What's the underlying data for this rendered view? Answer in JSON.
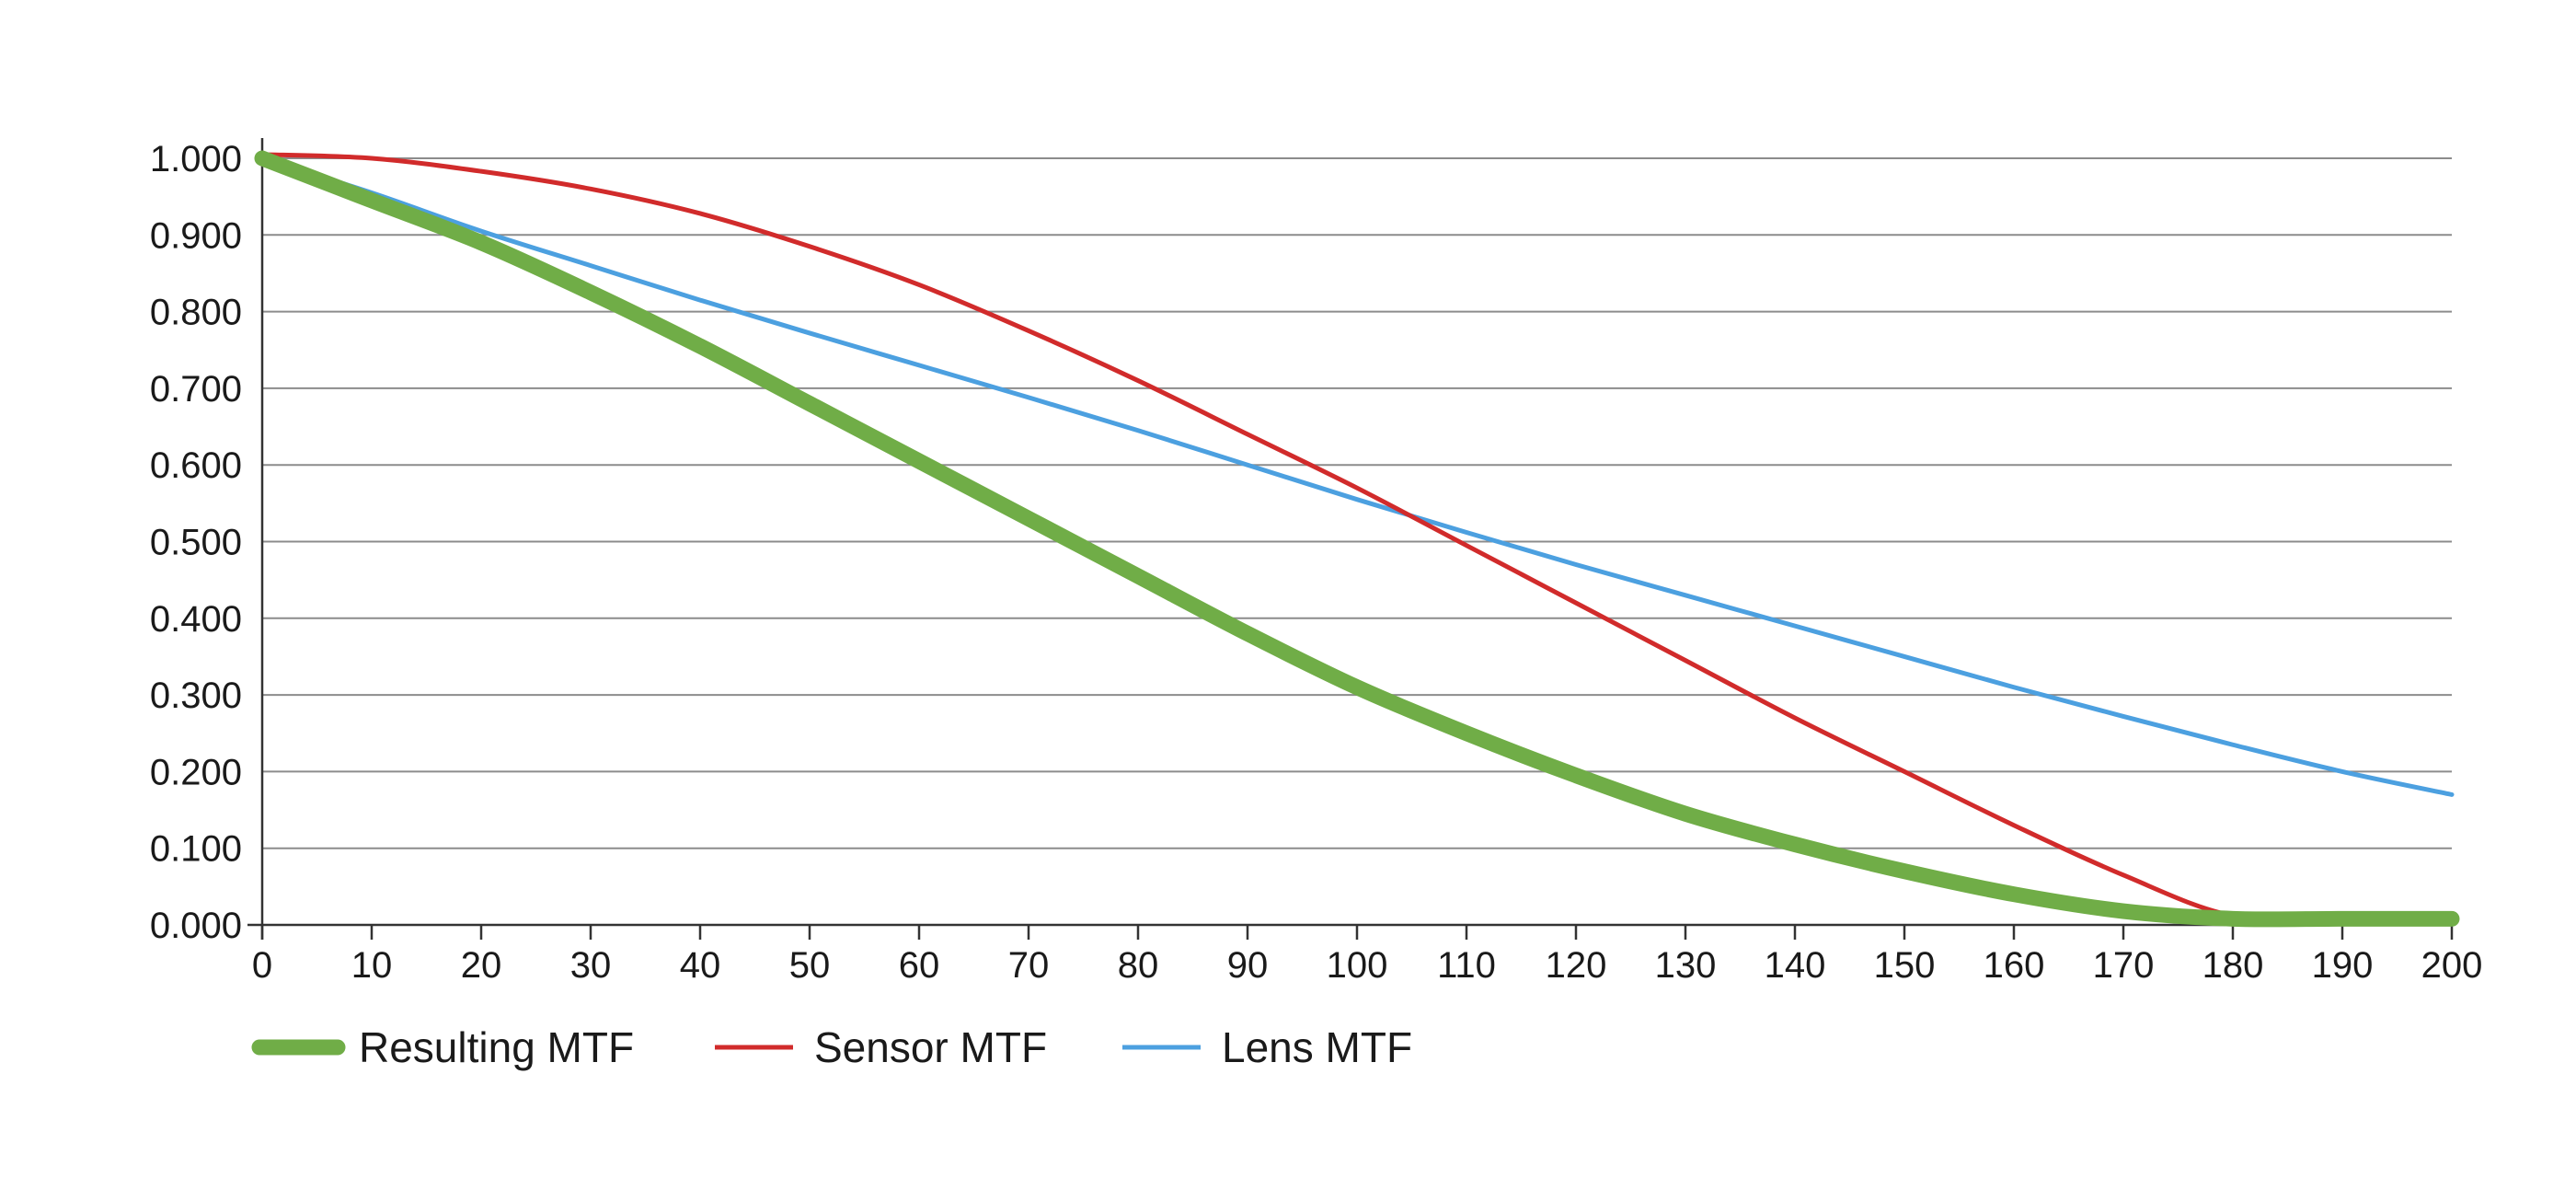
{
  "chart_data": {
    "type": "line",
    "title": "",
    "xlabel": "",
    "ylabel": "",
    "xlim": [
      0,
      200
    ],
    "ylim": [
      0,
      1
    ],
    "x_ticks": [
      0,
      10,
      20,
      30,
      40,
      50,
      60,
      70,
      80,
      90,
      100,
      110,
      120,
      130,
      140,
      150,
      160,
      170,
      180,
      190,
      200
    ],
    "y_ticks": [
      0,
      0.1,
      0.2,
      0.3,
      0.4,
      0.5,
      0.6,
      0.7,
      0.8,
      0.9,
      1.0
    ],
    "x_tick_labels": [
      "0",
      "10",
      "20",
      "30",
      "40",
      "50",
      "60",
      "70",
      "80",
      "90",
      "100",
      "110",
      "120",
      "130",
      "140",
      "150",
      "160",
      "170",
      "180",
      "190",
      "200"
    ],
    "y_tick_labels": [
      "0.000",
      "0.100",
      "0.200",
      "0.300",
      "0.400",
      "0.500",
      "0.600",
      "0.700",
      "0.800",
      "0.900",
      "1.000"
    ],
    "grid": "horizontal",
    "legend_position": "bottom-left",
    "x": [
      0,
      10,
      20,
      30,
      40,
      50,
      60,
      70,
      80,
      90,
      100,
      110,
      120,
      130,
      140,
      150,
      160,
      170,
      180,
      190,
      200
    ],
    "series": [
      {
        "name": "Resulting MTF",
        "color": "#70ad47",
        "values": [
          1.0,
          0.945,
          0.89,
          0.825,
          0.755,
          0.68,
          0.605,
          0.53,
          0.455,
          0.38,
          0.31,
          0.25,
          0.195,
          0.145,
          0.105,
          0.07,
          0.04,
          0.018,
          0.008,
          0.008,
          0.008
        ]
      },
      {
        "name": "Sensor MTF",
        "color": "#d12b2b",
        "values": [
          1.005,
          1.0,
          0.983,
          0.96,
          0.928,
          0.885,
          0.835,
          0.775,
          0.71,
          0.64,
          0.57,
          0.495,
          0.42,
          0.345,
          0.27,
          0.2,
          0.13,
          0.065,
          0.012,
          0.01,
          0.01
        ]
      },
      {
        "name": "Lens MTF",
        "color": "#4ca0e0",
        "values": [
          1.0,
          0.955,
          0.905,
          0.86,
          0.815,
          0.772,
          0.73,
          0.688,
          0.645,
          0.6,
          0.555,
          0.512,
          0.47,
          0.43,
          0.39,
          0.35,
          0.31,
          0.272,
          0.235,
          0.2,
          0.17
        ]
      }
    ]
  }
}
